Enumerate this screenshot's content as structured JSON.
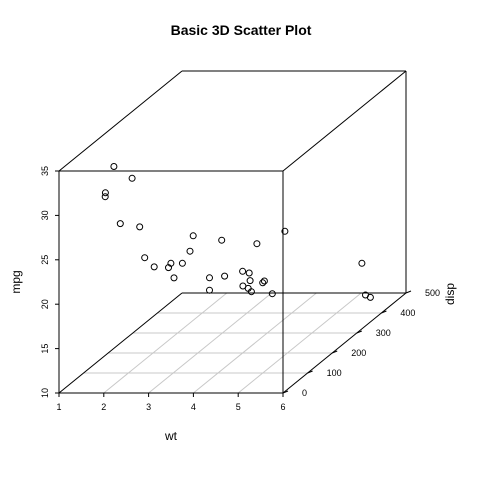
{
  "chart_data": {
    "type": "scatter",
    "title": "Basic 3D Scatter Plot",
    "xlabel": "wt",
    "ylabel": "mpg",
    "zlabel": "disp",
    "xlim": [
      1,
      6
    ],
    "ylim": [
      10,
      35
    ],
    "zlim": [
      0,
      500
    ],
    "x_ticks": [
      "1",
      "2",
      "3",
      "4",
      "5",
      "6"
    ],
    "y_ticks": [
      "10",
      "15",
      "20",
      "25",
      "30",
      "35"
    ],
    "z_ticks": [
      "0",
      "100",
      "200",
      "300",
      "400",
      "500"
    ],
    "grid": true,
    "points": [
      {
        "x": 2.62,
        "y": 21.0,
        "z": 160
      },
      {
        "x": 2.875,
        "y": 21.0,
        "z": 160
      },
      {
        "x": 2.32,
        "y": 22.8,
        "z": 108
      },
      {
        "x": 3.215,
        "y": 21.4,
        "z": 258
      },
      {
        "x": 3.44,
        "y": 18.7,
        "z": 360
      },
      {
        "x": 3.46,
        "y": 18.1,
        "z": 225
      },
      {
        "x": 3.57,
        "y": 14.3,
        "z": 360
      },
      {
        "x": 3.19,
        "y": 24.4,
        "z": 146.7
      },
      {
        "x": 3.15,
        "y": 22.8,
        "z": 140.8
      },
      {
        "x": 3.44,
        "y": 19.2,
        "z": 167.6
      },
      {
        "x": 3.44,
        "y": 17.8,
        "z": 167.6
      },
      {
        "x": 4.07,
        "y": 16.4,
        "z": 275.8
      },
      {
        "x": 3.73,
        "y": 17.3,
        "z": 275.8
      },
      {
        "x": 3.78,
        "y": 15.2,
        "z": 275.8
      },
      {
        "x": 5.25,
        "y": 10.4,
        "z": 472
      },
      {
        "x": 5.424,
        "y": 10.4,
        "z": 460
      },
      {
        "x": 5.345,
        "y": 14.7,
        "z": 440
      },
      {
        "x": 2.2,
        "y": 32.4,
        "z": 78.7
      },
      {
        "x": 1.615,
        "y": 30.4,
        "z": 75.7
      },
      {
        "x": 1.835,
        "y": 33.9,
        "z": 71.1
      },
      {
        "x": 2.465,
        "y": 21.5,
        "z": 120.1
      },
      {
        "x": 3.52,
        "y": 15.5,
        "z": 318
      },
      {
        "x": 3.435,
        "y": 15.2,
        "z": 304
      },
      {
        "x": 3.84,
        "y": 13.3,
        "z": 350
      },
      {
        "x": 3.845,
        "y": 19.2,
        "z": 400
      },
      {
        "x": 1.935,
        "y": 27.3,
        "z": 79
      },
      {
        "x": 2.14,
        "y": 26.0,
        "z": 120.3
      },
      {
        "x": 1.513,
        "y": 30.4,
        "z": 95.1
      },
      {
        "x": 3.17,
        "y": 15.8,
        "z": 351
      },
      {
        "x": 2.77,
        "y": 19.7,
        "z": 145
      },
      {
        "x": 3.57,
        "y": 15.0,
        "z": 301
      },
      {
        "x": 2.78,
        "y": 21.4,
        "z": 121
      }
    ]
  }
}
